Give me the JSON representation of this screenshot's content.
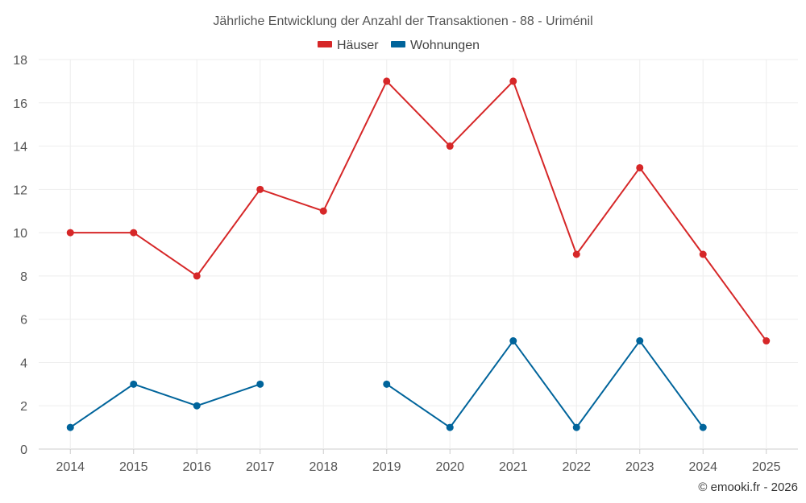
{
  "chart_data": {
    "type": "line",
    "title": "Jährliche Entwicklung der Anzahl der Transaktionen - 88 - Uriménil",
    "categories": [
      "2014",
      "2015",
      "2016",
      "2017",
      "2018",
      "2019",
      "2020",
      "2021",
      "2022",
      "2023",
      "2024",
      "2025"
    ],
    "series": [
      {
        "name": "Häuser",
        "color": "#d62728",
        "values": [
          10,
          10,
          8,
          12,
          11,
          17,
          14,
          17,
          9,
          13,
          9,
          5
        ]
      },
      {
        "name": "Wohnungen",
        "color": "#00649b",
        "values": [
          1,
          3,
          2,
          3,
          null,
          3,
          1,
          5,
          1,
          5,
          1,
          null
        ]
      }
    ],
    "ylim": [
      0,
      18
    ],
    "yticks": [
      0,
      2,
      4,
      6,
      8,
      10,
      12,
      14,
      16,
      18
    ],
    "legend_position": "top-center",
    "grid": true
  },
  "credit": "© emooki.fr - 2026"
}
